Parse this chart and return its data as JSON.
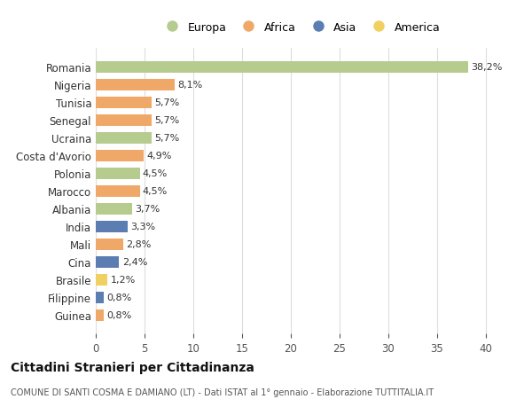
{
  "categories": [
    "Romania",
    "Nigeria",
    "Tunisia",
    "Senegal",
    "Ucraina",
    "Costa d'Avorio",
    "Polonia",
    "Marocco",
    "Albania",
    "India",
    "Mali",
    "Cina",
    "Brasile",
    "Filippine",
    "Guinea"
  ],
  "values": [
    38.2,
    8.1,
    5.7,
    5.7,
    5.7,
    4.9,
    4.5,
    4.5,
    3.7,
    3.3,
    2.8,
    2.4,
    1.2,
    0.8,
    0.8
  ],
  "labels": [
    "38,2%",
    "8,1%",
    "5,7%",
    "5,7%",
    "5,7%",
    "4,9%",
    "4,5%",
    "4,5%",
    "3,7%",
    "3,3%",
    "2,8%",
    "2,4%",
    "1,2%",
    "0,8%",
    "0,8%"
  ],
  "continents": [
    "Europa",
    "Africa",
    "Africa",
    "Africa",
    "Europa",
    "Africa",
    "Europa",
    "Africa",
    "Europa",
    "Asia",
    "Africa",
    "Asia",
    "America",
    "Asia",
    "Africa"
  ],
  "continent_colors": {
    "Europa": "#b5cc8e",
    "Africa": "#f0a868",
    "Asia": "#5b7db1",
    "America": "#f0d060"
  },
  "legend_order": [
    "Europa",
    "Africa",
    "Asia",
    "America"
  ],
  "xlim": [
    0,
    42
  ],
  "xticks": [
    0,
    5,
    10,
    15,
    20,
    25,
    30,
    35,
    40
  ],
  "title": "Cittadini Stranieri per Cittadinanza",
  "subtitle": "COMUNE DI SANTI COSMA E DAMIANO (LT) - Dati ISTAT al 1° gennaio - Elaborazione TUTTITALIA.IT",
  "background_color": "#ffffff",
  "grid_color": "#dddddd"
}
